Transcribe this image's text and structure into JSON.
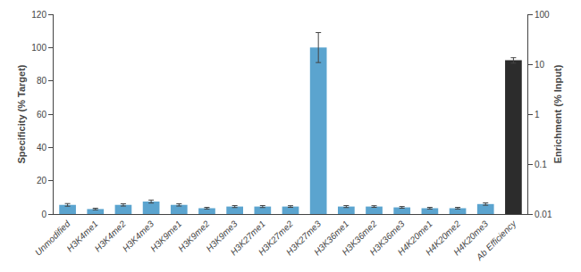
{
  "chart_data": {
    "type": "bar",
    "categories": [
      "Unmodified",
      "H3K4me1",
      "H3K4me2",
      "H3K4me3",
      "H3K9me1",
      "H3K9me2",
      "H3K9me3",
      "H3K27me1",
      "H3K27me2",
      "H3K27me3",
      "H3K36me1",
      "H3K36me2",
      "H3K36me3",
      "H4K20me1",
      "H4K20me2",
      "H4K20me3",
      "Ab Efficiency"
    ],
    "series": [
      {
        "color": "#5BA4CF",
        "values": [
          5.5,
          3.0,
          5.5,
          7.5,
          5.5,
          3.5,
          4.5,
          4.5,
          4.5,
          100.0,
          4.5,
          4.5,
          4.0,
          3.5,
          3.5,
          6.0,
          null
        ],
        "errors": [
          0.8,
          0.5,
          0.7,
          0.9,
          0.7,
          0.5,
          0.6,
          0.6,
          0.5,
          9.0,
          0.6,
          0.5,
          0.5,
          0.5,
          0.5,
          0.7,
          null
        ]
      },
      {
        "color": "#2C2C2C",
        "axis": "y2",
        "values": [
          null,
          null,
          null,
          null,
          null,
          null,
          null,
          null,
          null,
          null,
          null,
          null,
          null,
          null,
          null,
          null,
          12.0
        ],
        "errors": [
          null,
          null,
          null,
          null,
          null,
          null,
          null,
          null,
          null,
          null,
          null,
          null,
          null,
          null,
          null,
          null,
          1.5
        ]
      }
    ],
    "ylabel": "Specificity (% Target)",
    "y2label": "Enrichment (% Input)",
    "ylim": [
      0,
      120
    ],
    "yticks": [
      0,
      20,
      40,
      60,
      80,
      100,
      120
    ],
    "y2lim": [
      0.01,
      100
    ],
    "y2ticks": [
      0.01,
      0.1,
      1,
      10,
      100
    ],
    "log": "y2",
    "grid": false
  }
}
